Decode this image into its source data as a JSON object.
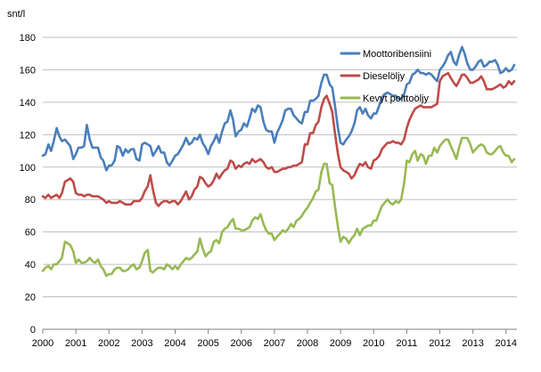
{
  "chart_data": {
    "type": "line",
    "title": "",
    "xlabel": "",
    "ylabel": "snt/l",
    "ylim": [
      0,
      180
    ],
    "xlim": [
      2000,
      2014.33
    ],
    "yticks": [
      "0",
      "20",
      "40",
      "60",
      "80",
      "100",
      "120",
      "140",
      "160",
      "180"
    ],
    "xticks": [
      "2000",
      "2001",
      "2002",
      "2003",
      "2004",
      "2005",
      "2006",
      "2007",
      "2008",
      "2009",
      "2010",
      "2011",
      "2012",
      "2013",
      "2014"
    ],
    "grid": true,
    "legend_position": "top-right",
    "series": [
      {
        "name": "Moottoribensiini",
        "color": "#4a7ebb",
        "x": [
          2000.0,
          2000.08,
          2000.17,
          2000.25,
          2000.33,
          2000.42,
          2000.5,
          2000.58,
          2000.67,
          2000.75,
          2000.83,
          2000.92,
          2001.0,
          2001.08,
          2001.17,
          2001.25,
          2001.33,
          2001.42,
          2001.5,
          2001.58,
          2001.67,
          2001.75,
          2001.83,
          2001.92,
          2002.0,
          2002.08,
          2002.17,
          2002.25,
          2002.33,
          2002.42,
          2002.5,
          2002.58,
          2002.67,
          2002.75,
          2002.83,
          2002.92,
          2003.0,
          2003.08,
          2003.17,
          2003.25,
          2003.33,
          2003.42,
          2003.5,
          2003.58,
          2003.67,
          2003.75,
          2003.83,
          2003.92,
          2004.0,
          2004.08,
          2004.17,
          2004.25,
          2004.33,
          2004.42,
          2004.5,
          2004.58,
          2004.67,
          2004.75,
          2004.83,
          2004.92,
          2005.0,
          2005.08,
          2005.17,
          2005.25,
          2005.33,
          2005.42,
          2005.5,
          2005.58,
          2005.67,
          2005.75,
          2005.83,
          2005.92,
          2006.0,
          2006.08,
          2006.17,
          2006.25,
          2006.33,
          2006.42,
          2006.5,
          2006.58,
          2006.67,
          2006.75,
          2006.83,
          2006.92,
          2007.0,
          2007.08,
          2007.17,
          2007.25,
          2007.33,
          2007.42,
          2007.5,
          2007.58,
          2007.67,
          2007.75,
          2007.83,
          2007.92,
          2008.0,
          2008.08,
          2008.17,
          2008.25,
          2008.33,
          2008.42,
          2008.5,
          2008.58,
          2008.67,
          2008.75,
          2008.83,
          2008.92,
          2009.0,
          2009.08,
          2009.17,
          2009.25,
          2009.33,
          2009.42,
          2009.5,
          2009.58,
          2009.67,
          2009.75,
          2009.83,
          2009.92,
          2010.0,
          2010.08,
          2010.17,
          2010.25,
          2010.33,
          2010.42,
          2010.5,
          2010.58,
          2010.67,
          2010.75,
          2010.83,
          2010.92,
          2011.0,
          2011.08,
          2011.17,
          2011.25,
          2011.33,
          2011.42,
          2011.5,
          2011.58,
          2011.67,
          2011.75,
          2011.83,
          2011.92,
          2012.0,
          2012.08,
          2012.17,
          2012.25,
          2012.33,
          2012.42,
          2012.5,
          2012.58,
          2012.67,
          2012.75,
          2012.83,
          2012.92,
          2013.0,
          2013.08,
          2013.17,
          2013.25,
          2013.33,
          2013.42,
          2013.5,
          2013.58,
          2013.67,
          2013.75,
          2013.83,
          2013.92,
          2014.0,
          2014.08,
          2014.17,
          2014.25
        ],
        "values": [
          107,
          108,
          114,
          110,
          116,
          124,
          119,
          116,
          117,
          115,
          113,
          105,
          108,
          112,
          112,
          113,
          126,
          117,
          112,
          112,
          112,
          106,
          104,
          98,
          101,
          101,
          104,
          113,
          112,
          107,
          111,
          109,
          111,
          111,
          105,
          104,
          114,
          115,
          114,
          113,
          107,
          110,
          113,
          109,
          109,
          103,
          101,
          104,
          107,
          108,
          111,
          114,
          118,
          114,
          115,
          118,
          117,
          120,
          115,
          112,
          108,
          113,
          116,
          120,
          115,
          122,
          127,
          128,
          135,
          129,
          119,
          122,
          123,
          127,
          125,
          130,
          136,
          134,
          138,
          137,
          128,
          123,
          122,
          122,
          115,
          121,
          125,
          129,
          135,
          136,
          136,
          132,
          130,
          128,
          127,
          134,
          134,
          141,
          141,
          142,
          144,
          152,
          157,
          157,
          151,
          149,
          138,
          124,
          115,
          114,
          117,
          119,
          122,
          127,
          135,
          137,
          133,
          136,
          132,
          130,
          133,
          133,
          138,
          143,
          145,
          146,
          145,
          144,
          144,
          142,
          142,
          145,
          151,
          152,
          157,
          158,
          160,
          158,
          158,
          157,
          158,
          157,
          155,
          153,
          160,
          162,
          165,
          169,
          171,
          165,
          163,
          169,
          174,
          170,
          164,
          160,
          160,
          162,
          165,
          166,
          162,
          163,
          165,
          165,
          166,
          163,
          158,
          159,
          161,
          159,
          160,
          163
        ]
      },
      {
        "name": "Dieselöljy",
        "color": "#be4b48",
        "x": [
          2000.0,
          2000.08,
          2000.17,
          2000.25,
          2000.33,
          2000.42,
          2000.5,
          2000.58,
          2000.67,
          2000.75,
          2000.83,
          2000.92,
          2001.0,
          2001.08,
          2001.17,
          2001.25,
          2001.33,
          2001.42,
          2001.5,
          2001.58,
          2001.67,
          2001.75,
          2001.83,
          2001.92,
          2002.0,
          2002.08,
          2002.17,
          2002.25,
          2002.33,
          2002.42,
          2002.5,
          2002.58,
          2002.67,
          2002.75,
          2002.83,
          2002.92,
          2003.0,
          2003.08,
          2003.17,
          2003.25,
          2003.33,
          2003.42,
          2003.5,
          2003.58,
          2003.67,
          2003.75,
          2003.83,
          2003.92,
          2004.0,
          2004.08,
          2004.17,
          2004.25,
          2004.33,
          2004.42,
          2004.5,
          2004.58,
          2004.67,
          2004.75,
          2004.83,
          2004.92,
          2005.0,
          2005.08,
          2005.17,
          2005.25,
          2005.33,
          2005.42,
          2005.5,
          2005.58,
          2005.67,
          2005.75,
          2005.83,
          2005.92,
          2006.0,
          2006.08,
          2006.17,
          2006.25,
          2006.33,
          2006.42,
          2006.5,
          2006.58,
          2006.67,
          2006.75,
          2006.83,
          2006.92,
          2007.0,
          2007.08,
          2007.17,
          2007.25,
          2007.33,
          2007.42,
          2007.5,
          2007.58,
          2007.67,
          2007.75,
          2007.83,
          2007.92,
          2008.0,
          2008.08,
          2008.17,
          2008.25,
          2008.33,
          2008.42,
          2008.5,
          2008.58,
          2008.67,
          2008.75,
          2008.83,
          2008.92,
          2009.0,
          2009.08,
          2009.17,
          2009.25,
          2009.33,
          2009.42,
          2009.5,
          2009.58,
          2009.67,
          2009.75,
          2009.83,
          2009.92,
          2010.0,
          2010.08,
          2010.17,
          2010.25,
          2010.33,
          2010.42,
          2010.5,
          2010.58,
          2010.67,
          2010.75,
          2010.83,
          2010.92,
          2011.0,
          2011.08,
          2011.17,
          2011.25,
          2011.33,
          2011.42,
          2011.5,
          2011.58,
          2011.67,
          2011.75,
          2011.83,
          2011.92,
          2012.0,
          2012.08,
          2012.17,
          2012.25,
          2012.33,
          2012.42,
          2012.5,
          2012.58,
          2012.67,
          2012.75,
          2012.83,
          2012.92,
          2013.0,
          2013.08,
          2013.17,
          2013.25,
          2013.33,
          2013.42,
          2013.5,
          2013.58,
          2013.67,
          2013.75,
          2013.83,
          2013.92,
          2014.0,
          2014.08,
          2014.17,
          2014.25
        ],
        "values": [
          82,
          81,
          83,
          81,
          82,
          83,
          81,
          84,
          91,
          92,
          93,
          91,
          84,
          83,
          83,
          82,
          83,
          83,
          82,
          82,
          82,
          81,
          80,
          78,
          79,
          78,
          78,
          78,
          79,
          78,
          77,
          77,
          77,
          79,
          79,
          79,
          81,
          85,
          88,
          95,
          86,
          78,
          76,
          78,
          79,
          79,
          78,
          79,
          79,
          77,
          79,
          82,
          85,
          80,
          82,
          86,
          88,
          94,
          93,
          90,
          88,
          89,
          92,
          96,
          93,
          96,
          98,
          99,
          104,
          103,
          99,
          101,
          100,
          102,
          103,
          102,
          105,
          103,
          104,
          105,
          103,
          100,
          99,
          100,
          97,
          97,
          98,
          99,
          99,
          100,
          100,
          101,
          101,
          102,
          103,
          114,
          114,
          121,
          121,
          126,
          128,
          137,
          142,
          144,
          139,
          134,
          121,
          108,
          100,
          98,
          97,
          96,
          93,
          95,
          99,
          102,
          101,
          103,
          100,
          99,
          104,
          105,
          107,
          111,
          113,
          115,
          115,
          116,
          115,
          115,
          114,
          117,
          124,
          129,
          133,
          136,
          137,
          138,
          137,
          137,
          137,
          137,
          138,
          139,
          153,
          156,
          157,
          158,
          155,
          152,
          150,
          153,
          157,
          157,
          155,
          152,
          152,
          153,
          154,
          156,
          153,
          148,
          148,
          148,
          149,
          150,
          151,
          149,
          150,
          153,
          151,
          153
        ]
      },
      {
        "name": "Kevyt polttoöljy",
        "color": "#98b954",
        "x": [
          2000.0,
          2000.08,
          2000.17,
          2000.25,
          2000.33,
          2000.42,
          2000.5,
          2000.58,
          2000.67,
          2000.75,
          2000.83,
          2000.92,
          2001.0,
          2001.08,
          2001.17,
          2001.25,
          2001.33,
          2001.42,
          2001.5,
          2001.58,
          2001.67,
          2001.75,
          2001.83,
          2001.92,
          2002.0,
          2002.08,
          2002.17,
          2002.25,
          2002.33,
          2002.42,
          2002.5,
          2002.58,
          2002.67,
          2002.75,
          2002.83,
          2002.92,
          2003.0,
          2003.08,
          2003.17,
          2003.25,
          2003.33,
          2003.42,
          2003.5,
          2003.58,
          2003.67,
          2003.75,
          2003.83,
          2003.92,
          2004.0,
          2004.08,
          2004.17,
          2004.25,
          2004.33,
          2004.42,
          2004.5,
          2004.58,
          2004.67,
          2004.75,
          2004.83,
          2004.92,
          2005.0,
          2005.08,
          2005.17,
          2005.25,
          2005.33,
          2005.42,
          2005.5,
          2005.58,
          2005.67,
          2005.75,
          2005.83,
          2005.92,
          2006.0,
          2006.08,
          2006.17,
          2006.25,
          2006.33,
          2006.42,
          2006.5,
          2006.58,
          2006.67,
          2006.75,
          2006.83,
          2006.92,
          2007.0,
          2007.08,
          2007.17,
          2007.25,
          2007.33,
          2007.42,
          2007.5,
          2007.58,
          2007.67,
          2007.75,
          2007.83,
          2007.92,
          2008.0,
          2008.08,
          2008.17,
          2008.25,
          2008.33,
          2008.42,
          2008.5,
          2008.58,
          2008.67,
          2008.75,
          2008.83,
          2008.92,
          2009.0,
          2009.08,
          2009.17,
          2009.25,
          2009.33,
          2009.42,
          2009.5,
          2009.58,
          2009.67,
          2009.75,
          2009.83,
          2009.92,
          2010.0,
          2010.08,
          2010.17,
          2010.25,
          2010.33,
          2010.42,
          2010.5,
          2010.58,
          2010.67,
          2010.75,
          2010.83,
          2010.92,
          2011.0,
          2011.08,
          2011.17,
          2011.25,
          2011.33,
          2011.42,
          2011.5,
          2011.58,
          2011.67,
          2011.75,
          2011.83,
          2011.92,
          2012.0,
          2012.08,
          2012.17,
          2012.25,
          2012.33,
          2012.42,
          2012.5,
          2012.58,
          2012.67,
          2012.75,
          2012.83,
          2012.92,
          2013.0,
          2013.08,
          2013.17,
          2013.25,
          2013.33,
          2013.42,
          2013.5,
          2013.58,
          2013.67,
          2013.75,
          2013.83,
          2013.92,
          2014.0,
          2014.08,
          2014.17,
          2014.25
        ],
        "values": [
          36,
          38,
          39,
          37,
          40,
          40,
          42,
          44,
          54,
          53,
          52,
          48,
          41,
          43,
          41,
          41,
          42,
          44,
          42,
          41,
          43,
          39,
          37,
          33,
          34,
          34,
          37,
          38,
          38,
          36,
          36,
          37,
          39,
          40,
          37,
          38,
          42,
          47,
          49,
          36,
          35,
          37,
          38,
          38,
          37,
          40,
          39,
          37,
          39,
          37,
          40,
          42,
          44,
          43,
          44,
          46,
          48,
          56,
          50,
          45,
          47,
          48,
          54,
          55,
          53,
          60,
          62,
          63,
          66,
          68,
          62,
          62,
          61,
          61,
          62,
          63,
          67,
          69,
          68,
          71,
          65,
          61,
          59,
          59,
          55,
          57,
          59,
          61,
          60,
          62,
          65,
          63,
          67,
          68,
          70,
          73,
          75,
          78,
          81,
          85,
          86,
          97,
          102,
          102,
          90,
          89,
          76,
          63,
          54,
          57,
          56,
          53,
          56,
          58,
          62,
          58,
          62,
          63,
          64,
          64,
          67,
          67,
          72,
          76,
          78,
          80,
          78,
          77,
          79,
          78,
          80,
          90,
          104,
          103,
          108,
          110,
          104,
          108,
          107,
          102,
          107,
          107,
          112,
          109,
          113,
          115,
          117,
          117,
          113,
          109,
          105,
          112,
          118,
          118,
          118,
          114,
          109,
          111,
          113,
          114,
          113,
          109,
          108,
          108,
          110,
          112,
          113,
          109,
          107,
          107,
          103,
          105
        ]
      }
    ]
  }
}
